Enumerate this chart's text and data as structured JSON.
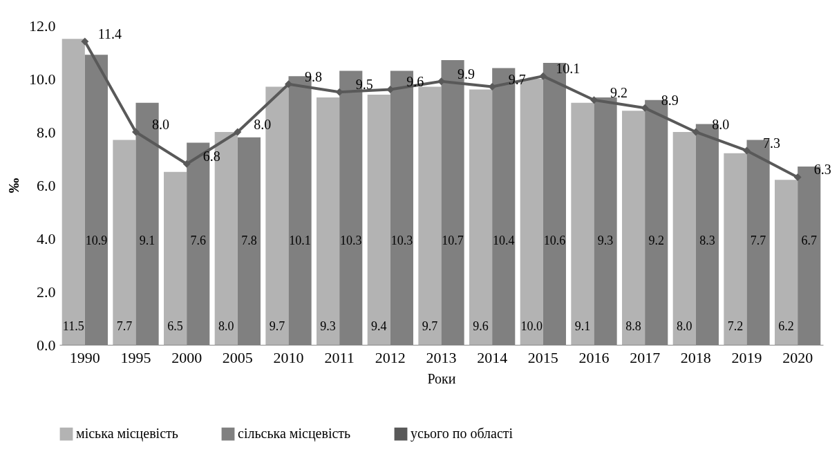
{
  "chart_data": {
    "type": "bar",
    "xlabel": "Роки",
    "ylabel": "‰",
    "categories": [
      "1990",
      "1995",
      "2000",
      "2005",
      "2010",
      "2011",
      "2012",
      "2013",
      "2014",
      "2015",
      "2016",
      "2017",
      "2018",
      "2019",
      "2020"
    ],
    "series": [
      {
        "name": "міська місцевість",
        "color": "#b3b3b3",
        "values": [
          11.5,
          7.7,
          6.5,
          8.0,
          9.7,
          9.3,
          9.4,
          9.7,
          9.6,
          10.0,
          9.1,
          8.8,
          8.0,
          7.2,
          6.2
        ],
        "value_labels": [
          "11.5",
          "7.7",
          "6.5",
          "8.0",
          "9.7",
          "9.3",
          "9.4",
          "9.7",
          "9.6",
          "10.0",
          "9.1",
          "8.8",
          "8.0",
          "7.2",
          "6.2"
        ]
      },
      {
        "name": "сільська місцевість",
        "color": "#808080",
        "values": [
          10.9,
          9.1,
          7.6,
          7.8,
          10.1,
          10.3,
          10.3,
          10.7,
          10.4,
          10.6,
          9.3,
          9.2,
          8.3,
          7.7,
          6.7
        ],
        "value_labels": [
          "10.9",
          "9.1",
          "7.6",
          "7.8",
          "10.1",
          "10.3",
          "10.3",
          "10.7",
          "10.4",
          "10.6",
          "9.3",
          "9.2",
          "8.3",
          "7.7",
          "6.7"
        ]
      },
      {
        "name": "усього по області",
        "type": "line",
        "color": "#595959",
        "values": [
          11.4,
          8.0,
          6.8,
          8.0,
          9.8,
          9.5,
          9.6,
          9.9,
          9.7,
          10.1,
          9.2,
          8.9,
          8.0,
          7.3,
          6.3
        ],
        "value_labels": [
          "11.4",
          "8.0",
          "6.8",
          "8.0",
          "9.8",
          "9.5",
          "9.6",
          "9.9",
          "9.7",
          "10.1",
          "9.2",
          "8.9",
          "8.0",
          "7.3",
          "6.3"
        ]
      }
    ],
    "ylim": [
      0,
      12
    ],
    "yticks": [
      {
        "value": 0,
        "label": "0.0"
      },
      {
        "value": 2,
        "label": "2.0"
      },
      {
        "value": 4,
        "label": "4.0"
      },
      {
        "value": 6,
        "label": "6.0"
      },
      {
        "value": 8,
        "label": "8.0"
      },
      {
        "value": 10,
        "label": "10.0"
      },
      {
        "value": 12,
        "label": "12.0"
      }
    ],
    "legend": "bottom",
    "marker": "diamond"
  }
}
